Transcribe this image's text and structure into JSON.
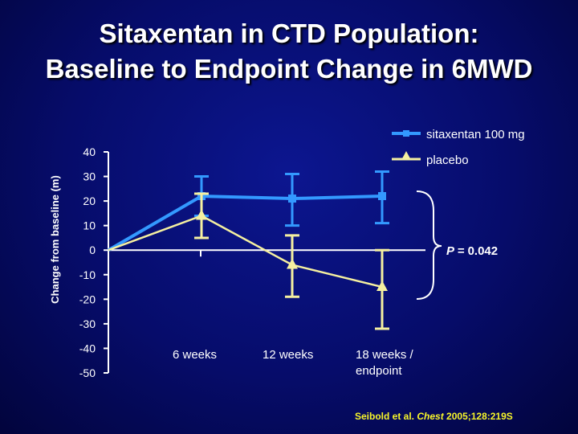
{
  "title_line1": "Sitaxentan in CTD Population:",
  "title_line2": "Baseline to Endpoint Change in 6MWD",
  "colors": {
    "sitaxentan": "#3399ff",
    "placebo": "#f5f0a0",
    "axis": "#ffffff",
    "citation": "#f7f52a"
  },
  "chart_data": {
    "type": "line",
    "ylabel": "Change from baseline (m)",
    "ylim": [
      -50,
      40
    ],
    "yticks": [
      40,
      30,
      20,
      10,
      0,
      -10,
      -20,
      -30,
      -40,
      -50
    ],
    "x": [
      0,
      6,
      12,
      18
    ],
    "categories": [
      "6 weeks",
      "12 weeks",
      "18 weeks /",
      "endpoint"
    ],
    "series": [
      {
        "name": "sitaxentan 100 mg",
        "marker": "square",
        "values": [
          0,
          22,
          21,
          22
        ],
        "err_low": [
          null,
          14,
          10,
          11
        ],
        "err_high": [
          null,
          30,
          31,
          32
        ]
      },
      {
        "name": "placebo",
        "marker": "triangle",
        "values": [
          0,
          14,
          -6,
          -15
        ],
        "err_low": [
          null,
          5,
          -19,
          -32
        ],
        "err_high": [
          null,
          23,
          6,
          0
        ]
      }
    ],
    "annotation": {
      "label": "P =",
      "value": "0.042"
    }
  },
  "citation": {
    "authors": "Seibold et al.",
    "journal": "Chest",
    "details": "2005;128:219S"
  }
}
